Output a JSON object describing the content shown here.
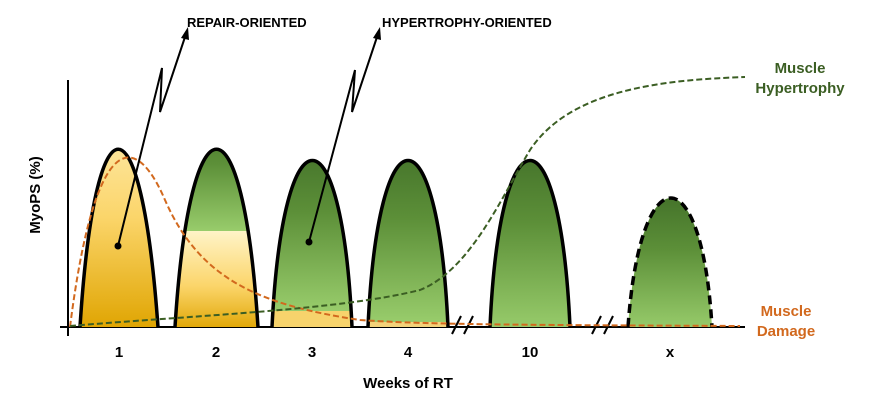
{
  "annotations": {
    "repair": "REPAIR-ORIENTED",
    "hypertrophy": "HYPERTROPHY-ORIENTED"
  },
  "axes": {
    "y_title": "MyoPS (%)",
    "x_title": "Weeks of RT",
    "ticks": [
      "1",
      "2",
      "3",
      "4",
      "10",
      "x"
    ]
  },
  "curves": {
    "hypertrophy_line1": "Muscle",
    "hypertrophy_line2": "Hypertrophy",
    "damage_line1": "Muscle",
    "damage_line2": "Damage"
  },
  "colors": {
    "green_dark": "#3d6b2a",
    "green_light": "#8cc15f",
    "yellow_dark": "#e0a800",
    "yellow_light": "#ffefb0",
    "damage_orange": "#d2691e",
    "hypertrophy_green": "#3b5e23"
  }
}
